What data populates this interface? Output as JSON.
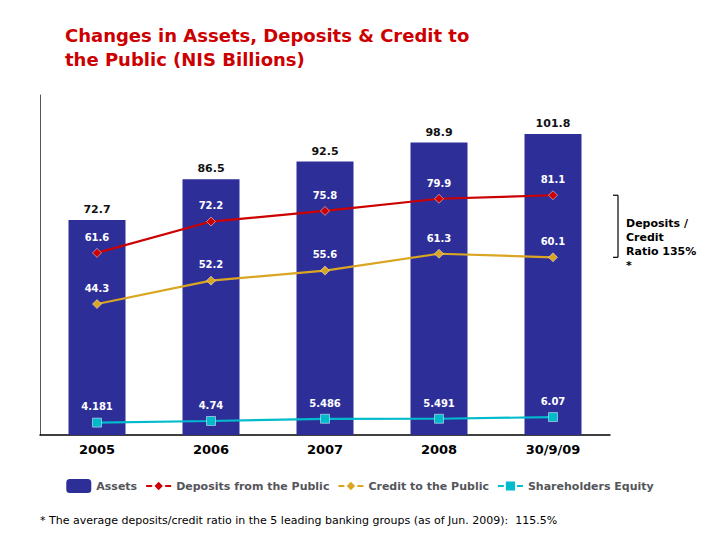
{
  "chart_data": {
    "type": "bar",
    "title": "Changes in Assets, Deposits & Credit to\nthe Public (NIS Billions)",
    "title_color": "#CC0000",
    "categories": [
      "2005",
      "2006",
      "2007",
      "2008",
      "30/9/09"
    ],
    "series": [
      {
        "name": "Assets",
        "type": "bar",
        "color": "#2E2E99",
        "values": [
          72.7,
          86.5,
          92.5,
          98.9,
          101.8
        ]
      },
      {
        "name": "Deposits from the Public",
        "type": "line",
        "color": "#CC0000",
        "marker": "diamond",
        "values": [
          61.6,
          72.2,
          75.8,
          79.9,
          81.1
        ]
      },
      {
        "name": "Credit to the Public",
        "type": "line",
        "color": "#DAA520",
        "marker": "diamond",
        "values": [
          44.3,
          52.2,
          55.6,
          61.3,
          60.1
        ]
      },
      {
        "name": "Shareholders Equity",
        "type": "line",
        "color": "#00BBCC",
        "marker": "square",
        "values": [
          4.181,
          4.74,
          5.486,
          5.491,
          6.07
        ]
      }
    ],
    "ylim": [
      0,
      115
    ],
    "tick_labels": "x",
    "grid": false,
    "legend": "bottom",
    "data_labels": true,
    "annotations": [
      "Deposits /\nCredit\nRatio 135%\n*",
      "* The average deposits/credit ratio in the 5 leading banking groups (as of Jun. 2009):  115.5%"
    ]
  }
}
